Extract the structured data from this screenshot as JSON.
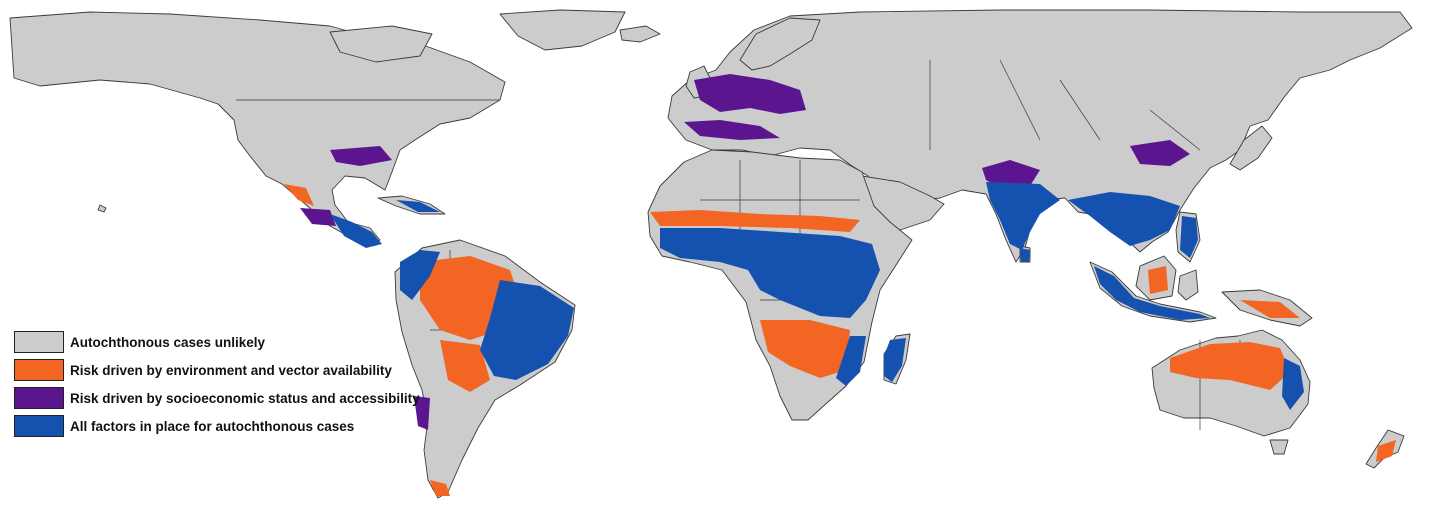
{
  "map": {
    "colors": {
      "unlikely": "#cccccc",
      "environment": "#f26522",
      "socioeconomic": "#5b168f",
      "all_factors": "#1552b0",
      "borders": "#3a3a3a",
      "background": "#ffffff"
    }
  },
  "legend": {
    "items": [
      {
        "key": "unlikely",
        "label": "Autochthonous cases unlikely",
        "color": "#cccccc"
      },
      {
        "key": "environment",
        "label": "Risk driven by environment and vector availability",
        "color": "#f26522"
      },
      {
        "key": "socioeconomic",
        "label": "Risk driven by socioeconomic status and accessibility",
        "color": "#5b168f"
      },
      {
        "key": "all_factors",
        "label": "All factors in place for autochthonous cases",
        "color": "#1552b0"
      }
    ]
  }
}
